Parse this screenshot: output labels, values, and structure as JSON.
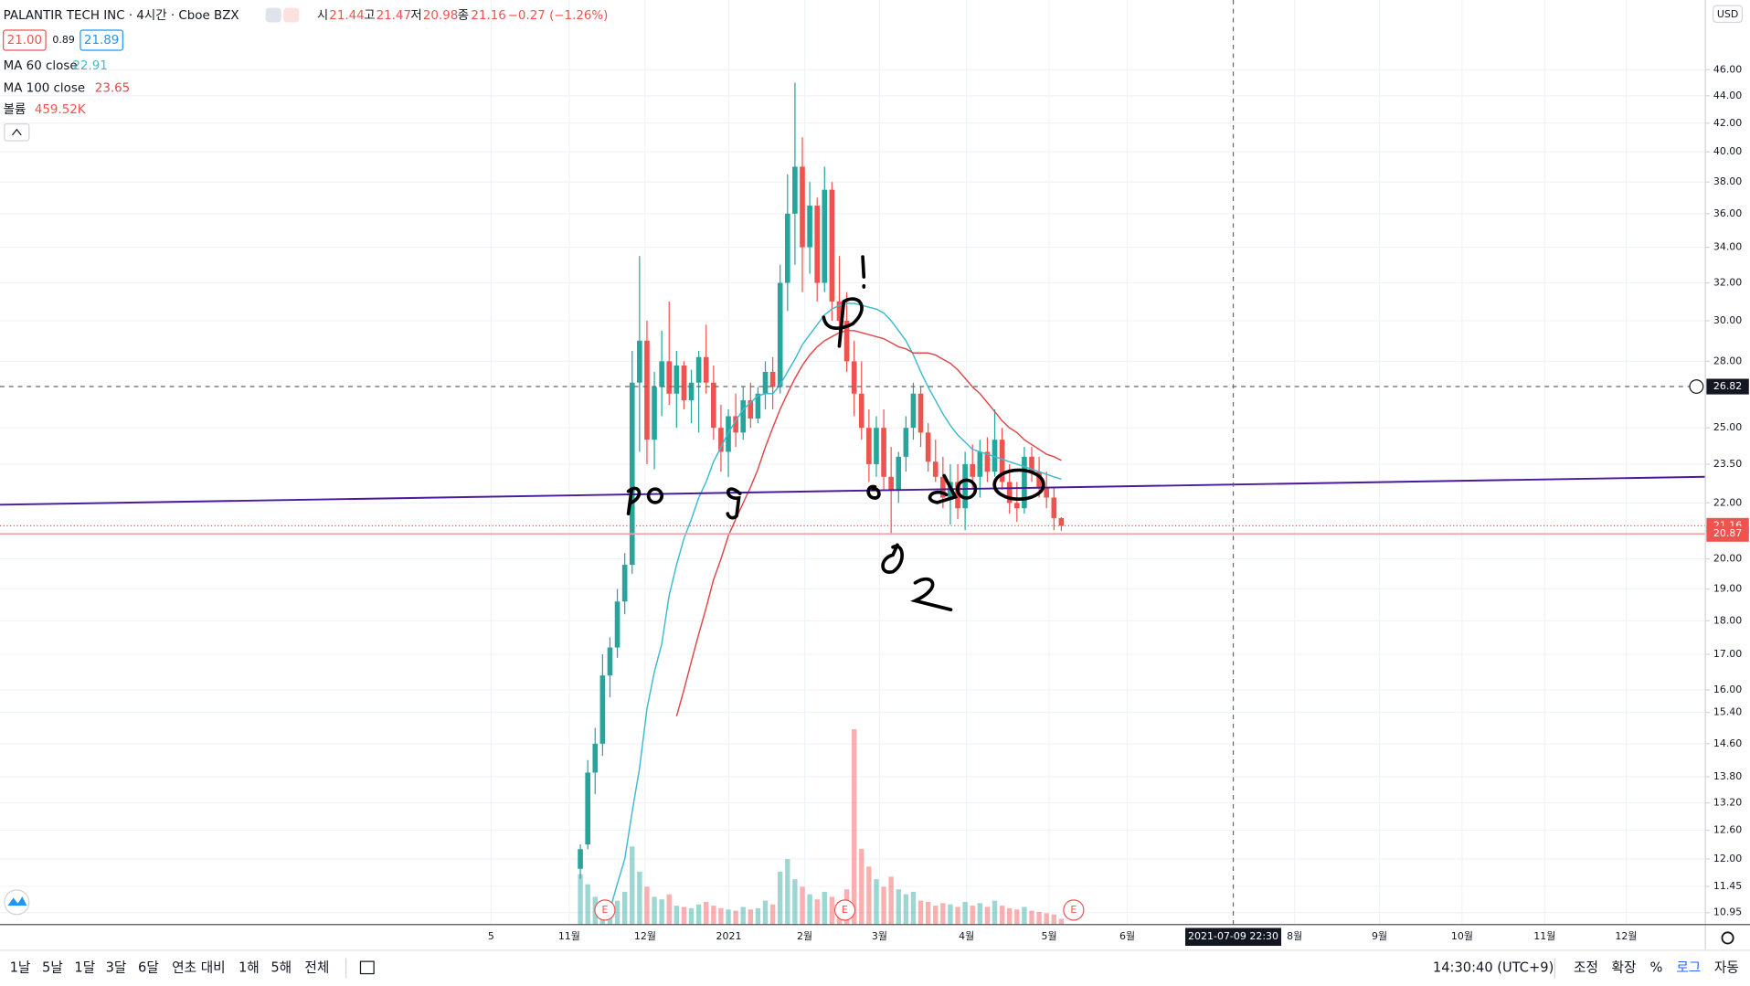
{
  "header": {
    "symbol": "PALANTIR TECH INC · 4시간 · Cboe BZX",
    "ohlc_labels": [
      "시",
      "고",
      "저",
      "종"
    ],
    "change": "−0.27 (−1.26%)",
    "bid": "21.00",
    "spread": "0.89",
    "ask": "21.89"
  },
  "toolbar": {
    "ranges": [
      "1날",
      "5날",
      "1달",
      "3달",
      "6달",
      "연초 대비",
      "1해",
      "5해",
      "전체"
    ],
    "clock": "14:30:40 (UTC+9)",
    "options": [
      "조정",
      "확장",
      "%",
      "로그",
      "자동"
    ]
  },
  "chart_data": {
    "type": "candlestick",
    "currency": "USD",
    "log_scale": true,
    "grid": true,
    "up_color": "#26a69a",
    "down_color": "#ef5350",
    "ylim": [
      10.73,
      51.8
    ],
    "yticks": [
      {
        "value": 46,
        "label": "46.00"
      },
      {
        "value": 44,
        "label": "44.00"
      },
      {
        "value": 42,
        "label": "42.00"
      },
      {
        "value": 40,
        "label": "40.00"
      },
      {
        "value": 38,
        "label": "38.00"
      },
      {
        "value": 36,
        "label": "36.00"
      },
      {
        "value": 34,
        "label": "34.00"
      },
      {
        "value": 32,
        "label": "32.00"
      },
      {
        "value": 30,
        "label": "30.00"
      },
      {
        "value": 28,
        "label": "28.00"
      },
      {
        "value": 25,
        "label": "25.00"
      },
      {
        "value": 23.5,
        "label": "23.50"
      },
      {
        "value": 22,
        "label": "22.00"
      },
      {
        "value": 20,
        "label": "20.00"
      },
      {
        "value": 19,
        "label": "19.00"
      },
      {
        "value": 18,
        "label": "18.00"
      },
      {
        "value": 17,
        "label": "17.00"
      },
      {
        "value": 16,
        "label": "16.00"
      },
      {
        "value": 15.4,
        "label": "15.40"
      },
      {
        "value": 14.6,
        "label": "14.60"
      },
      {
        "value": 13.8,
        "label": "13.80"
      },
      {
        "value": 13.2,
        "label": "13.20"
      },
      {
        "value": 12.6,
        "label": "12.60"
      },
      {
        "value": 12,
        "label": "12.00"
      },
      {
        "value": 11.45,
        "label": "11.45"
      },
      {
        "value": 10.95,
        "label": "10.95"
      }
    ],
    "xtick_labels": [
      "5",
      "11월",
      "12월",
      "2021",
      "2월",
      "3월",
      "4월",
      "5월",
      "6월",
      "8월",
      "9월",
      "10월",
      "11월",
      "12월"
    ],
    "open": [
      11.8,
      12.3,
      13.9,
      14.6,
      16.4,
      17.2,
      18.6,
      19.8,
      27.0,
      29.0,
      24.5,
      26.8,
      28.0,
      26.5,
      27.8,
      26.2,
      27.0,
      28.2,
      27.0,
      25.0,
      24.0,
      25.5,
      24.8,
      26.2,
      25.4,
      26.5,
      27.5,
      26.8,
      32.0,
      36.0,
      39.0,
      34.0,
      36.5,
      32.0,
      37.5,
      31.0,
      30.0,
      28.0,
      26.5,
      25.0,
      23.5,
      25.0,
      23.0,
      22.5,
      23.8,
      25.0,
      26.5,
      24.8,
      23.6,
      23.0,
      22.2,
      22.8,
      21.8,
      23.5,
      23.0,
      24.0,
      23.2,
      24.5,
      22.8,
      22.0,
      21.8,
      23.8,
      23.2,
      22.6,
      22.2,
      21.44
    ],
    "high": [
      12.3,
      14.2,
      15.0,
      17.0,
      17.5,
      19.0,
      20.2,
      28.5,
      33.5,
      30.0,
      27.5,
      29.5,
      31.0,
      28.5,
      28.0,
      27.6,
      28.5,
      29.8,
      27.8,
      26.0,
      25.8,
      26.5,
      26.8,
      27.0,
      26.8,
      28.0,
      28.2,
      33.0,
      38.5,
      45.0,
      41.0,
      38.0,
      37.0,
      39.0,
      38.0,
      33.5,
      31.5,
      29.0,
      28.0,
      25.8,
      25.5,
      25.8,
      24.2,
      24.0,
      25.5,
      27.0,
      26.8,
      25.2,
      24.5,
      23.8,
      23.5,
      23.5,
      24.0,
      24.3,
      24.5,
      24.6,
      25.8,
      25.0,
      23.5,
      22.8,
      24.2,
      24.2,
      23.8,
      23.2,
      22.6,
      21.47
    ],
    "low": [
      11.6,
      12.2,
      13.4,
      14.3,
      15.8,
      16.9,
      18.2,
      19.5,
      24.0,
      23.5,
      23.3,
      25.5,
      26.0,
      25.0,
      25.8,
      25.2,
      24.8,
      26.5,
      24.5,
      23.2,
      23.0,
      24.2,
      24.5,
      25.0,
      25.2,
      25.8,
      25.8,
      26.5,
      30.5,
      33.0,
      31.5,
      32.5,
      31.0,
      31.5,
      30.0,
      29.0,
      27.5,
      25.5,
      24.5,
      22.8,
      23.0,
      22.5,
      20.9,
      22.0,
      23.2,
      24.5,
      24.2,
      23.2,
      22.8,
      21.8,
      21.2,
      21.4,
      21.0,
      22.5,
      22.2,
      22.8,
      23.0,
      22.5,
      21.6,
      21.3,
      21.6,
      22.8,
      22.2,
      21.8,
      21.0,
      20.98
    ],
    "close": [
      12.2,
      13.9,
      14.6,
      16.4,
      17.2,
      18.6,
      19.8,
      27.0,
      29.0,
      24.5,
      26.8,
      28.0,
      26.5,
      27.8,
      26.2,
      27.0,
      28.2,
      27.0,
      25.0,
      24.0,
      25.5,
      24.8,
      26.2,
      25.4,
      26.5,
      27.5,
      26.8,
      32.0,
      36.0,
      39.0,
      34.0,
      36.5,
      32.0,
      37.5,
      31.0,
      30.0,
      28.0,
      26.5,
      25.0,
      23.5,
      25.0,
      23.0,
      22.5,
      23.8,
      25.0,
      26.5,
      24.8,
      23.6,
      23.0,
      22.2,
      22.8,
      21.8,
      23.5,
      23.0,
      24.0,
      23.2,
      24.5,
      22.8,
      22.0,
      21.8,
      23.8,
      23.2,
      22.6,
      22.2,
      21.44,
      21.16
    ],
    "volume": {
      "name": "볼륨",
      "last_label": "459.52K",
      "values": [
        4000,
        3200,
        2200,
        1800,
        1600,
        1900,
        2600,
        6200,
        4200,
        3000,
        2200,
        2000,
        2400,
        1500,
        1400,
        1300,
        1600,
        1800,
        1500,
        1300,
        1200,
        1100,
        1400,
        1200,
        1300,
        1900,
        1600,
        4200,
        5200,
        3600,
        3000,
        2400,
        2000,
        2600,
        2200,
        1800,
        2800,
        15500,
        6000,
        4600,
        3600,
        3000,
        3800,
        2800,
        2400,
        2600,
        1900,
        1800,
        1500,
        1700,
        1600,
        1400,
        1800,
        1500,
        1700,
        1400,
        1900,
        1500,
        1300,
        1200,
        1400,
        1100,
        1000,
        900,
        800,
        459.52
      ]
    },
    "series": [
      {
        "name": "MA 60 close",
        "color": "#3ebbd0",
        "values": [
          null,
          null,
          null,
          null,
          11.0,
          11.5,
          12.0,
          13.0,
          14.0,
          15.5,
          16.5,
          17.3,
          18.8,
          19.8,
          20.7,
          21.4,
          22.2,
          22.8,
          23.6,
          24.2,
          24.8,
          25.3,
          25.8,
          26.1,
          26.4,
          26.5,
          26.5,
          26.9,
          27.5,
          28.1,
          28.8,
          29.3,
          29.8,
          30.3,
          30.6,
          30.8,
          30.9,
          30.9,
          30.8,
          30.7,
          30.6,
          30.4,
          30.0,
          29.5,
          29.0,
          28.3,
          27.5,
          26.8,
          26.2,
          25.6,
          25.1,
          24.7,
          24.4,
          24.1,
          24.0,
          23.9,
          23.8,
          23.7,
          23.6,
          23.5,
          23.4,
          23.3,
          23.2,
          23.1,
          23.0,
          22.91
        ]
      },
      {
        "name": "MA 100 close",
        "color": "#e04848",
        "values": [
          null,
          null,
          null,
          null,
          null,
          null,
          null,
          null,
          null,
          null,
          null,
          null,
          null,
          15.3,
          16.0,
          16.8,
          17.6,
          18.4,
          19.3,
          20.0,
          20.8,
          21.4,
          22.0,
          22.6,
          23.3,
          24.2,
          25.0,
          25.8,
          26.5,
          27.2,
          27.8,
          28.3,
          28.7,
          29.0,
          29.2,
          29.4,
          29.5,
          29.5,
          29.4,
          29.3,
          29.2,
          29.1,
          28.9,
          28.7,
          28.6,
          28.4,
          28.4,
          28.4,
          28.3,
          28.1,
          27.9,
          27.6,
          27.2,
          26.8,
          26.5,
          26.1,
          25.7,
          25.3,
          25.0,
          24.8,
          24.5,
          24.3,
          24.1,
          23.9,
          23.8,
          23.65
        ]
      }
    ],
    "price_line": 20.87,
    "crosshair": {
      "price": 26.82,
      "time_label": "2021-07-09  22:30"
    },
    "earnings_markers": [
      "E",
      "E",
      "E"
    ]
  }
}
